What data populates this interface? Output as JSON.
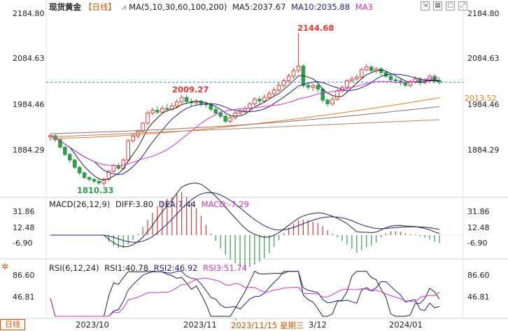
{
  "legend": {
    "symbol": "现货黄金",
    "timeframe": "【日线】",
    "ma_label": "MA(5,10,30,60,100,200)",
    "ma5": "MA5:2037.67",
    "ma10": "MA10:2035.88",
    "ma3": "MA3"
  },
  "macd_legend": {
    "name": "MACD(26,12,9)",
    "diff": "DIFF:3.80",
    "dea": "DEA:7.44",
    "macd": "MACD:-7.29"
  },
  "rsi_legend": {
    "name": "RSI(6,12,24)",
    "rsi1": "RSI1:40.78",
    "rsi2": "RSI2:46.92",
    "rsi3": "RSI3:51.74"
  },
  "price_axis": [
    "2184.80",
    "2084.63",
    "1984.46",
    "1884.29"
  ],
  "price_axis_left": [
    "2084.63",
    "1984.46",
    "1884.29"
  ],
  "macd_axis": [
    "31.86",
    "12.48",
    "-6.90"
  ],
  "rsi_axis": [
    "86.60",
    "46.81"
  ],
  "current_price": "2013.52",
  "annotations": {
    "high": "2144.68",
    "mid_high": "2009.27",
    "low": "1810.33"
  },
  "x_axis": [
    {
      "label": "2023/10",
      "highlight": false
    },
    {
      "label": "2023/11",
      "highlight": false
    },
    {
      "label": "2023/11/15 星期三",
      "highlight": true
    },
    {
      "label": "3/12",
      "highlight": false
    },
    {
      "label": "2024/01",
      "highlight": false
    }
  ],
  "period_tab": "日线",
  "toolbar_icons": [
    "pin-icon",
    "grid-icon",
    "window-icon",
    "expand-icon"
  ],
  "colors": {
    "up": "#e53935",
    "down": "#2e9e4a",
    "ma5": "#222222",
    "ma10": "#1a237e",
    "ma3": "#cc33cc",
    "ma30": "#e67e22",
    "ma_long": "#8d6e63"
  },
  "chart_data": {
    "type": "candlestick",
    "ylim": [
      1790,
      2185
    ],
    "candles": [
      [
        1918,
        1921,
        1925,
        1910
      ],
      [
        1921,
        1912,
        1924,
        1907
      ],
      [
        1912,
        1896,
        1914,
        1892
      ],
      [
        1896,
        1880,
        1898,
        1876
      ],
      [
        1880,
        1868,
        1884,
        1862
      ],
      [
        1868,
        1852,
        1870,
        1848
      ],
      [
        1852,
        1840,
        1855,
        1836
      ],
      [
        1840,
        1830,
        1843,
        1826
      ],
      [
        1830,
        1826,
        1833,
        1821
      ],
      [
        1826,
        1822,
        1829,
        1818
      ],
      [
        1822,
        1818,
        1826,
        1814
      ],
      [
        1818,
        1826,
        1830,
        1812
      ],
      [
        1826,
        1844,
        1846,
        1822
      ],
      [
        1844,
        1856,
        1860,
        1840
      ],
      [
        1856,
        1850,
        1862,
        1846
      ],
      [
        1850,
        1868,
        1872,
        1846
      ],
      [
        1868,
        1910,
        1914,
        1864
      ],
      [
        1910,
        1920,
        1926,
        1905
      ],
      [
        1920,
        1930,
        1934,
        1914
      ],
      [
        1930,
        1948,
        1950,
        1926
      ],
      [
        1948,
        1970,
        1975,
        1944
      ],
      [
        1970,
        1976,
        1982,
        1965
      ],
      [
        1976,
        1972,
        1985,
        1967
      ],
      [
        1972,
        1980,
        1986,
        1968
      ],
      [
        1980,
        1978,
        1990,
        1972
      ],
      [
        1978,
        1985,
        1992,
        1975
      ],
      [
        1985,
        1994,
        2000,
        1980
      ],
      [
        1994,
        2004,
        2009,
        1990
      ],
      [
        2004,
        1995,
        2009,
        1990
      ],
      [
        1995,
        1992,
        2002,
        1986
      ],
      [
        1992,
        1995,
        2000,
        1988
      ],
      [
        1995,
        1990,
        1999,
        1984
      ],
      [
        1990,
        1988,
        1995,
        1982
      ],
      [
        1988,
        1978,
        1992,
        1973
      ],
      [
        1978,
        1970,
        1984,
        1965
      ],
      [
        1970,
        1963,
        1975,
        1958
      ],
      [
        1963,
        1952,
        1967,
        1948
      ],
      [
        1952,
        1960,
        1964,
        1948
      ],
      [
        1960,
        1970,
        1974,
        1955
      ],
      [
        1970,
        1975,
        1980,
        1966
      ],
      [
        1975,
        1980,
        1985,
        1970
      ],
      [
        1980,
        1990,
        1994,
        1975
      ],
      [
        1990,
        2000,
        2004,
        1985
      ],
      [
        2000,
        1996,
        2006,
        1990
      ],
      [
        1996,
        2004,
        2010,
        1992
      ],
      [
        2004,
        2012,
        2018,
        2000
      ],
      [
        2012,
        2020,
        2026,
        2006
      ],
      [
        2020,
        2030,
        2036,
        2016
      ],
      [
        2030,
        2040,
        2045,
        2025
      ],
      [
        2040,
        2050,
        2056,
        2035
      ],
      [
        2050,
        2062,
        2068,
        2045
      ],
      [
        2062,
        2072,
        2144,
        2058
      ],
      [
        2072,
        2030,
        2076,
        2025
      ],
      [
        2030,
        2026,
        2035,
        2020
      ],
      [
        2026,
        2030,
        2034,
        2018
      ],
      [
        2030,
        2022,
        2036,
        2015
      ],
      [
        2022,
        1998,
        2026,
        1992
      ],
      [
        1998,
        1990,
        2002,
        1984
      ],
      [
        1990,
        2000,
        2006,
        1986
      ],
      [
        2000,
        2018,
        2022,
        1996
      ],
      [
        2018,
        2026,
        2030,
        2014
      ],
      [
        2026,
        2040,
        2044,
        2020
      ],
      [
        2040,
        2044,
        2050,
        2036
      ],
      [
        2044,
        2048,
        2054,
        2040
      ],
      [
        2048,
        2064,
        2068,
        2044
      ],
      [
        2064,
        2070,
        2076,
        2060
      ],
      [
        2070,
        2062,
        2074,
        2058
      ],
      [
        2062,
        2066,
        2070,
        2056
      ],
      [
        2066,
        2058,
        2070,
        2052
      ],
      [
        2058,
        2050,
        2062,
        2046
      ],
      [
        2050,
        2042,
        2056,
        2036
      ],
      [
        2042,
        2040,
        2048,
        2034
      ],
      [
        2040,
        2036,
        2046,
        2030
      ],
      [
        2036,
        2030,
        2040,
        2026
      ],
      [
        2030,
        2038,
        2042,
        2026
      ],
      [
        2038,
        2044,
        2050,
        2034
      ],
      [
        2044,
        2036,
        2048,
        2030
      ],
      [
        2036,
        2040,
        2046,
        2032
      ],
      [
        2040,
        2050,
        2054,
        2036
      ],
      [
        2050,
        2040,
        2054,
        2034
      ],
      [
        2040,
        2037,
        2046,
        2032
      ]
    ]
  }
}
